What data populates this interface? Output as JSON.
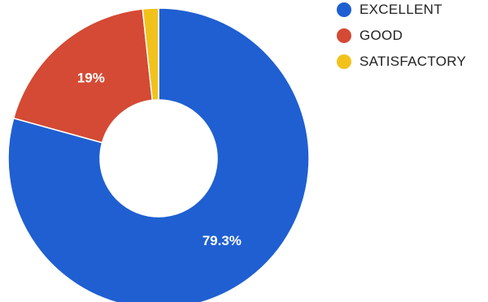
{
  "chart_data": {
    "type": "pie",
    "variant": "donut",
    "categories": [
      "EXCELLENT",
      "GOOD",
      "SATISFACTORY"
    ],
    "values": [
      79.3,
      19,
      1.7
    ],
    "data_labels": [
      "79.3%",
      "19%",
      ""
    ],
    "colors": [
      "#1f5fd1",
      "#d44a34",
      "#f2c21c"
    ],
    "legend": {
      "position": "top-right",
      "items": [
        {
          "label": "EXCELLENT",
          "color": "#1f5fd1"
        },
        {
          "label": "GOOD",
          "color": "#d44a34"
        },
        {
          "label": "SATISFACTORY",
          "color": "#f2c21c"
        }
      ]
    },
    "title": ""
  }
}
